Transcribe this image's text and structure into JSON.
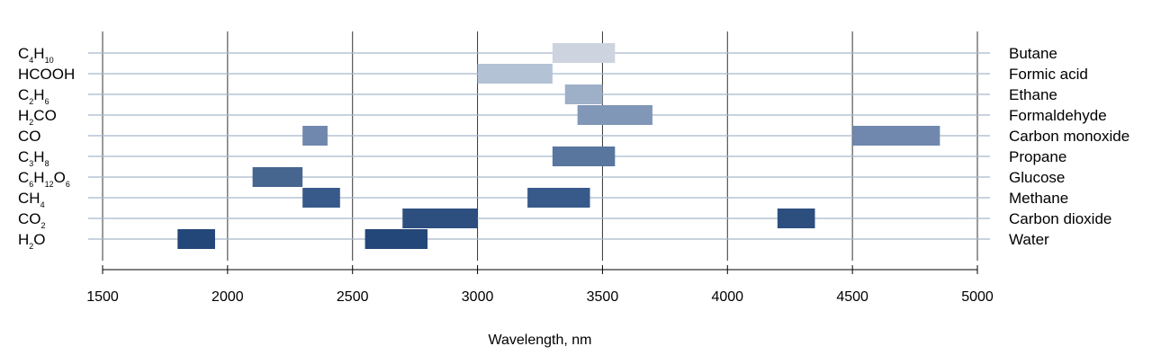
{
  "chart_data": {
    "type": "bar",
    "orientation": "horizontal-range",
    "xlabel": "Wavelength, nm",
    "xlim": [
      1500,
      5000
    ],
    "xticks": [
      1500,
      2000,
      2500,
      3000,
      3500,
      4000,
      4500,
      5000
    ],
    "xtick_labels": [
      "1500",
      "2000",
      "2500",
      "3000",
      "3500",
      "4000",
      "4500",
      "5000"
    ],
    "grid": "vertical lines at major ticks, horizontal lines at each row",
    "categories": [
      {
        "formula": [
          [
            "C",
            ""
          ],
          [
            "4",
            "sub"
          ],
          [
            "H",
            ""
          ],
          [
            "10",
            "sub"
          ]
        ],
        "name": "Butane",
        "color": "#cdd4e0",
        "ranges": [
          [
            3300,
            3550
          ]
        ]
      },
      {
        "formula": [
          [
            "HCOOH",
            ""
          ]
        ],
        "name": "Formic acid",
        "color": "#b4c2d6",
        "ranges": [
          [
            3000,
            3300
          ]
        ]
      },
      {
        "formula": [
          [
            "C",
            ""
          ],
          [
            "2",
            "sub"
          ],
          [
            "H",
            ""
          ],
          [
            "6",
            "sub"
          ]
        ],
        "name": "Ethane",
        "color": "#9eafc8",
        "ranges": [
          [
            3350,
            3500
          ]
        ]
      },
      {
        "formula": [
          [
            "H",
            ""
          ],
          [
            "2",
            "sub"
          ],
          [
            "CO",
            ""
          ]
        ],
        "name": "Formaldehyde",
        "color": "#8097b8",
        "ranges": [
          [
            3400,
            3700
          ]
        ]
      },
      {
        "formula": [
          [
            "CO",
            ""
          ]
        ],
        "name": "Carbon monoxide",
        "color": "#7088ad",
        "ranges": [
          [
            2300,
            2400
          ],
          [
            4500,
            4850
          ]
        ]
      },
      {
        "formula": [
          [
            "C",
            ""
          ],
          [
            "3",
            "sub"
          ],
          [
            "H",
            ""
          ],
          [
            "8",
            "sub"
          ]
        ],
        "name": "Propane",
        "color": "#58769e",
        "ranges": [
          [
            3300,
            3550
          ]
        ]
      },
      {
        "formula": [
          [
            "C",
            ""
          ],
          [
            "6",
            "sub"
          ],
          [
            "H",
            ""
          ],
          [
            "12",
            "sub"
          ],
          [
            "O",
            ""
          ],
          [
            "6",
            "sub"
          ]
        ],
        "name": "Glucose",
        "color": "#46658f",
        "ranges": [
          [
            2100,
            2300
          ]
        ]
      },
      {
        "formula": [
          [
            "CH",
            ""
          ],
          [
            "4",
            "sub"
          ]
        ],
        "name": "Methane",
        "color": "#385a8a",
        "ranges": [
          [
            2300,
            2450
          ],
          [
            3200,
            3450
          ]
        ]
      },
      {
        "formula": [
          [
            "CO",
            ""
          ],
          [
            "2",
            "sub"
          ]
        ],
        "name": "Carbon dioxide",
        "color": "#2d4f7f",
        "ranges": [
          [
            2700,
            3000
          ],
          [
            4200,
            4350
          ]
        ]
      },
      {
        "formula": [
          [
            "H",
            ""
          ],
          [
            "2",
            "sub"
          ],
          [
            "O",
            ""
          ]
        ],
        "name": "Water",
        "color": "#234778",
        "ranges": [
          [
            1800,
            1950
          ],
          [
            2550,
            2800
          ]
        ]
      }
    ]
  }
}
